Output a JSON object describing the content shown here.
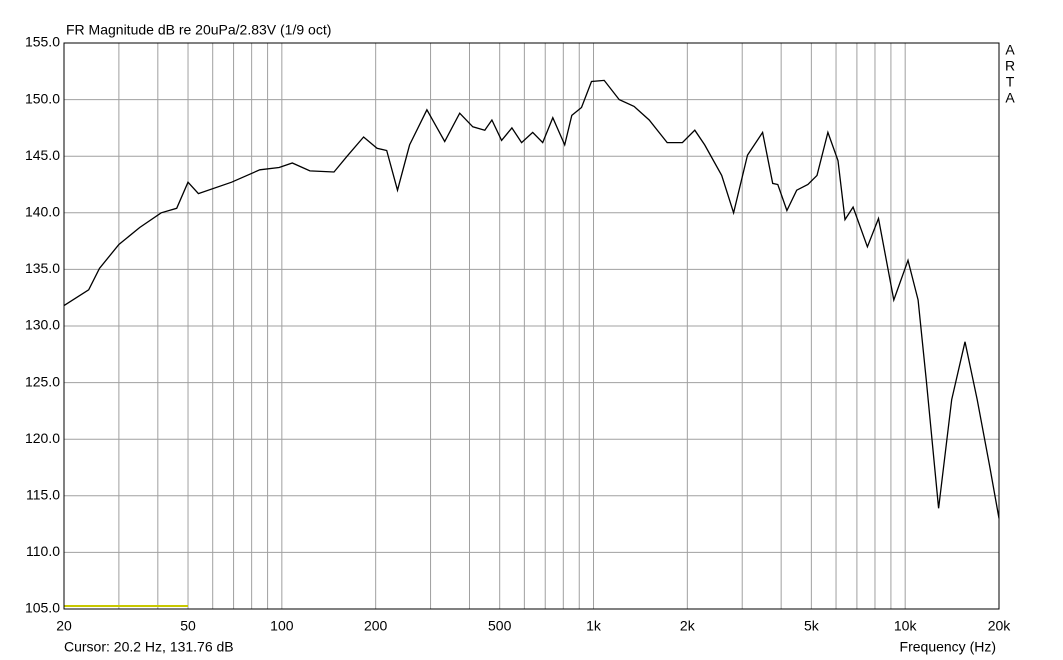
{
  "chart_data": {
    "type": "line",
    "title": "FR Magnitude dB re 20uPa/2.83V (1/9 oct)",
    "watermark": [
      "A",
      "R",
      "T",
      "A"
    ],
    "cursor_text": "Cursor: 20.2 Hz, 131.76 dB",
    "x_label": "Frequency (Hz)",
    "log_x": true,
    "grid": true,
    "xlim": [
      20,
      20000
    ],
    "ylim": [
      105,
      155
    ],
    "xticks": [
      20,
      50,
      100,
      200,
      500,
      {
        "value": 1000,
        "label": "1k"
      },
      {
        "value": 2000,
        "label": "2k"
      },
      {
        "value": 5000,
        "label": "5k"
      },
      {
        "value": 10000,
        "label": "10k"
      },
      {
        "value": 20000,
        "label": "20k"
      }
    ],
    "xminorticks": [
      30,
      40,
      60,
      70,
      80,
      90,
      300,
      400,
      600,
      700,
      800,
      900,
      3000,
      4000,
      6000,
      7000,
      8000,
      9000
    ],
    "yticks": [
      {
        "value": 105,
        "label": "105.0"
      },
      {
        "value": 110,
        "label": "110.0"
      },
      {
        "value": 115,
        "label": "115.0"
      },
      {
        "value": 120,
        "label": "120.0"
      },
      {
        "value": 125,
        "label": "125.0"
      },
      {
        "value": 130,
        "label": "130.0"
      },
      {
        "value": 135,
        "label": "135.0"
      },
      {
        "value": 140,
        "label": "140.0"
      },
      {
        "value": 145,
        "label": "145.0"
      },
      {
        "value": 150,
        "label": "150.0"
      },
      {
        "value": 155,
        "label": "155.0"
      }
    ],
    "series": [
      {
        "color": "#000000",
        "x": [
          20,
          24,
          26,
          30,
          35,
          41,
          46,
          50,
          54,
          69,
          85,
          98,
          108,
          123,
          147,
          162,
          183,
          202,
          217,
          235,
          257,
          292,
          333,
          372,
          410,
          448,
          472,
          507,
          547,
          588,
          638,
          687,
          740,
          808,
          852,
          915,
          985,
          1082,
          1209,
          1350,
          1509,
          1724,
          1929,
          2113,
          2273,
          2578,
          2816,
          3120,
          3487,
          3758,
          3902,
          4174,
          4487,
          4874,
          5212,
          5652,
          6087,
          6410,
          6806,
          7562,
          8213,
          9191,
          10210,
          11000,
          11690,
          12800,
          14100,
          15560,
          17030,
          18640,
          20000
        ],
        "values": [
          131.8,
          133.2,
          135.1,
          137.2,
          138.7,
          140.0,
          140.4,
          142.7,
          141.7,
          142.7,
          143.8,
          144.0,
          144.4,
          143.7,
          143.6,
          145.0,
          146.7,
          145.7,
          145.5,
          142.0,
          146.0,
          149.1,
          146.3,
          148.8,
          147.6,
          147.3,
          148.2,
          146.4,
          147.5,
          146.2,
          147.1,
          146.2,
          148.4,
          146.0,
          148.6,
          149.3,
          151.6,
          151.7,
          150.0,
          149.4,
          148.2,
          146.2,
          146.2,
          147.3,
          146.0,
          143.3,
          140.0,
          145.1,
          147.1,
          142.6,
          142.5,
          140.2,
          142.0,
          142.5,
          143.3,
          147.1,
          144.6,
          139.4,
          140.5,
          137.0,
          139.5,
          132.3,
          135.8,
          132.3,
          125.2,
          113.9,
          123.5,
          128.6,
          123.5,
          117.7,
          113.0
        ]
      }
    ]
  }
}
